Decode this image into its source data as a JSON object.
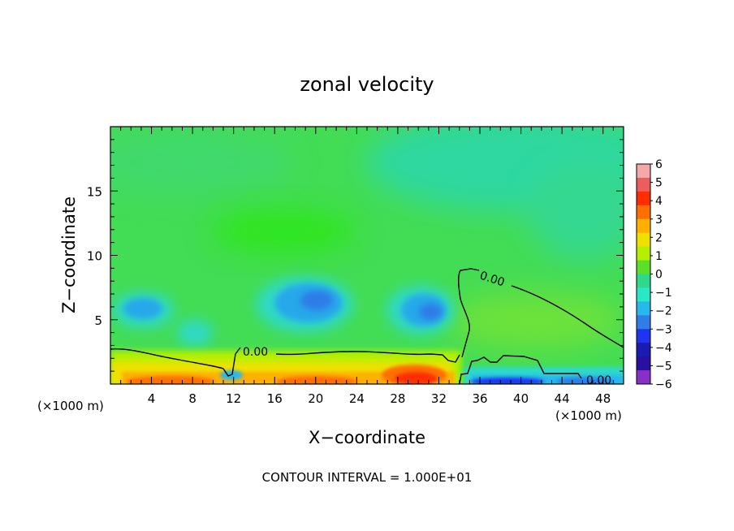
{
  "chart_data": {
    "type": "heatmap",
    "title": "zonal velocity",
    "xlabel": "X−coordinate",
    "ylabel": "Z−coordinate",
    "x_unit": "(×1000 m)",
    "y_unit": "(×1000 m)",
    "xlim": [
      0,
      50
    ],
    "ylim": [
      0,
      20
    ],
    "x_ticks": [
      4,
      8,
      12,
      16,
      20,
      24,
      28,
      32,
      36,
      40,
      44,
      48
    ],
    "y_ticks": [
      5,
      10,
      15
    ],
    "colorbar": {
      "ticks": [
        "6",
        "5",
        "4",
        "3",
        "2",
        "1",
        "0",
        "−1",
        "−2",
        "−3",
        "−4",
        "−5",
        "−6"
      ],
      "colors": [
        "#f4a8a8",
        "#ee5d5d",
        "#ff2d00",
        "#ff7000",
        "#ffb000",
        "#f0e000",
        "#b6f000",
        "#5be02a",
        "#2ed98a",
        "#29e8c6",
        "#27b8ee",
        "#2f7de6",
        "#1e34f0",
        "#1a1bb0",
        "#2a0fa0",
        "#8a2ec8"
      ]
    },
    "contour_label": "0.00",
    "contour_interval_text": "CONTOUR INTERVAL = 1.000E+01",
    "grid": false
  }
}
